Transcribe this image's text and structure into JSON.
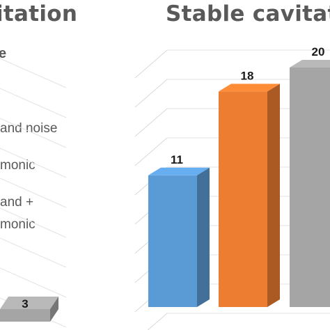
{
  "titles": {
    "left": "itation",
    "right": "Stable cavitat"
  },
  "legend": {
    "top_glyph": "e",
    "items": [
      "and noise",
      "monic",
      "and +",
      "monic"
    ]
  },
  "chart_data": [
    {
      "type": "bar",
      "title": "itation",
      "categories": [
        "bar-1"
      ],
      "values": [
        3
      ],
      "data_labels": [
        "3"
      ],
      "colors": [
        "#a5a5a5"
      ]
    },
    {
      "type": "bar",
      "title": "Stable cavitat",
      "categories": [
        "bar-1",
        "bar-2",
        "bar-3"
      ],
      "values": [
        11,
        18,
        20
      ],
      "data_labels": [
        "11",
        "18",
        "20"
      ],
      "colors": [
        "#5b9bd5",
        "#ed7d31",
        "#a5a5a5"
      ],
      "ylim": [
        0,
        20
      ],
      "grid": true,
      "legend": "left"
    }
  ]
}
